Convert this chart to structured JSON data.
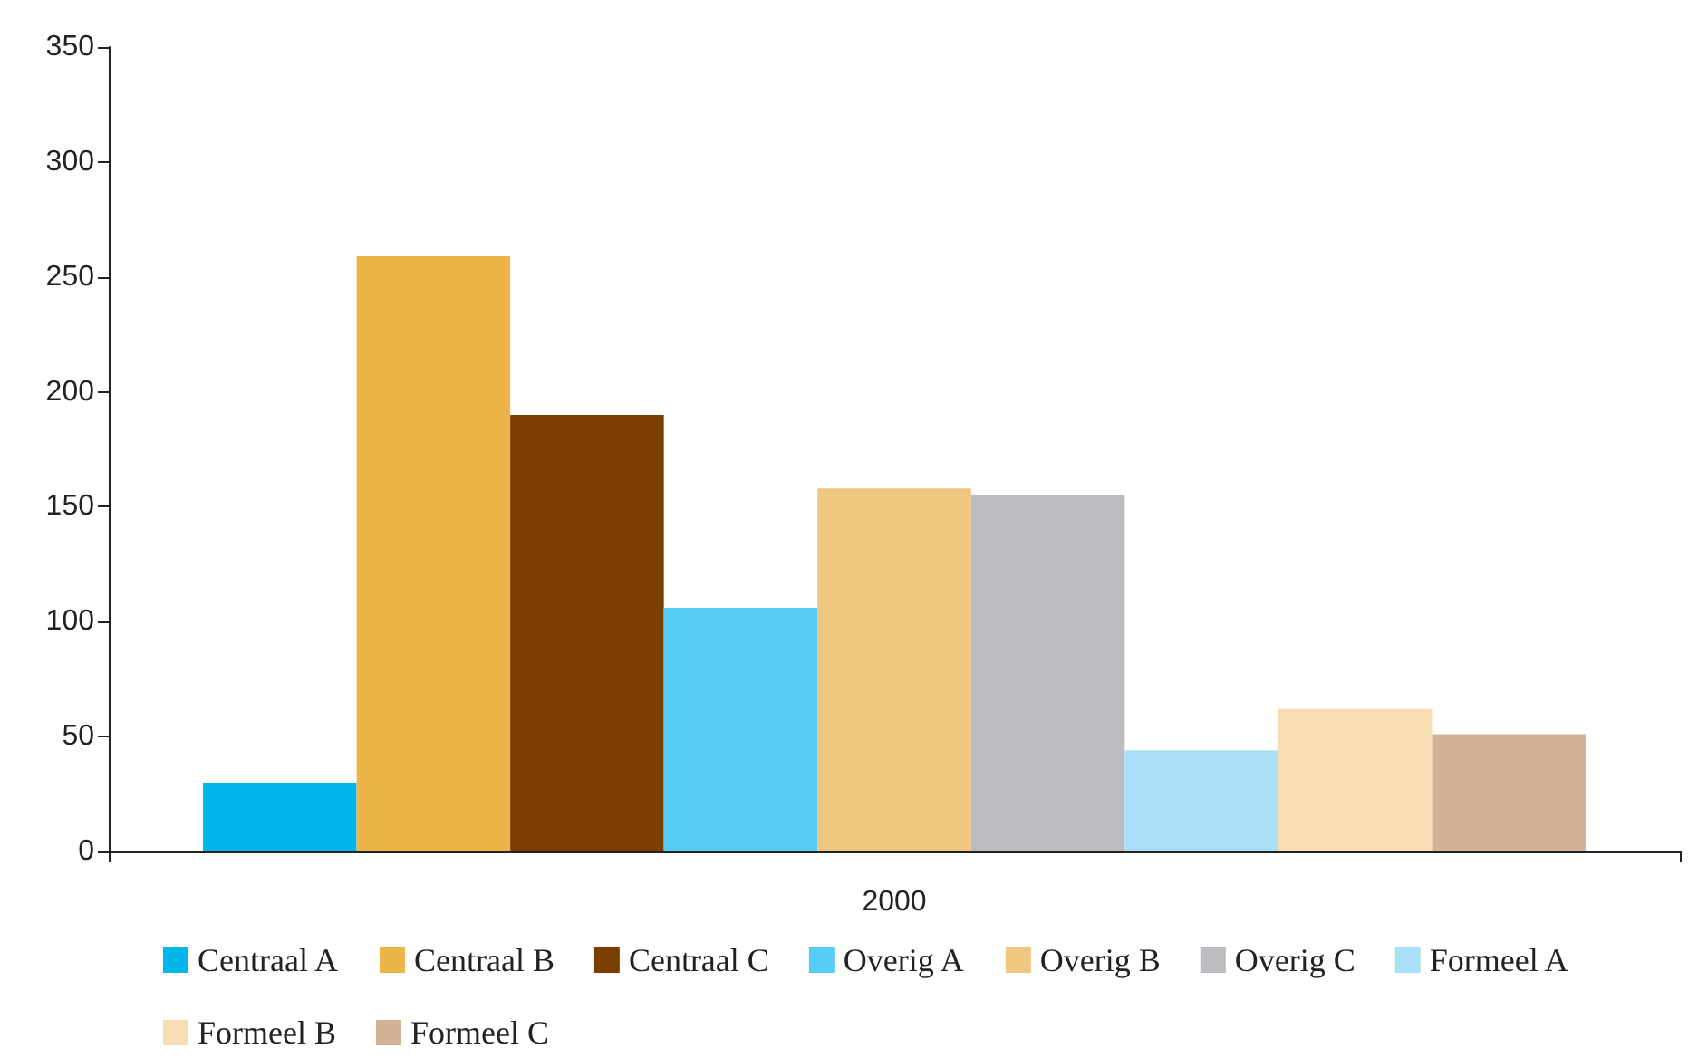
{
  "chart_data": {
    "type": "bar",
    "categories": [
      "2000"
    ],
    "series": [
      {
        "name": "Centraal A",
        "color": "#00b5e9",
        "values": [
          30
        ]
      },
      {
        "name": "Centraal B",
        "color": "#ebb549",
        "values": [
          259
        ]
      },
      {
        "name": "Centraal C",
        "color": "#7a3f00",
        "values": [
          190
        ]
      },
      {
        "name": "Overig A",
        "color": "#57ccf5",
        "values": [
          106
        ]
      },
      {
        "name": "Overig B",
        "color": "#f0c780",
        "values": [
          158
        ]
      },
      {
        "name": "Overig C",
        "color": "#bcbcc0",
        "values": [
          155
        ]
      },
      {
        "name": "Formeel A",
        "color": "#aadff8",
        "values": [
          44
        ]
      },
      {
        "name": "Formeel B",
        "color": "#f7deb2",
        "values": [
          62
        ]
      },
      {
        "name": "Formeel C",
        "color": "#d3b295",
        "values": [
          51
        ]
      }
    ],
    "ylim": [
      0,
      350
    ],
    "yticks": [
      0,
      50,
      100,
      150,
      200,
      250,
      300,
      350
    ],
    "grid": false,
    "legend": "bottom"
  }
}
